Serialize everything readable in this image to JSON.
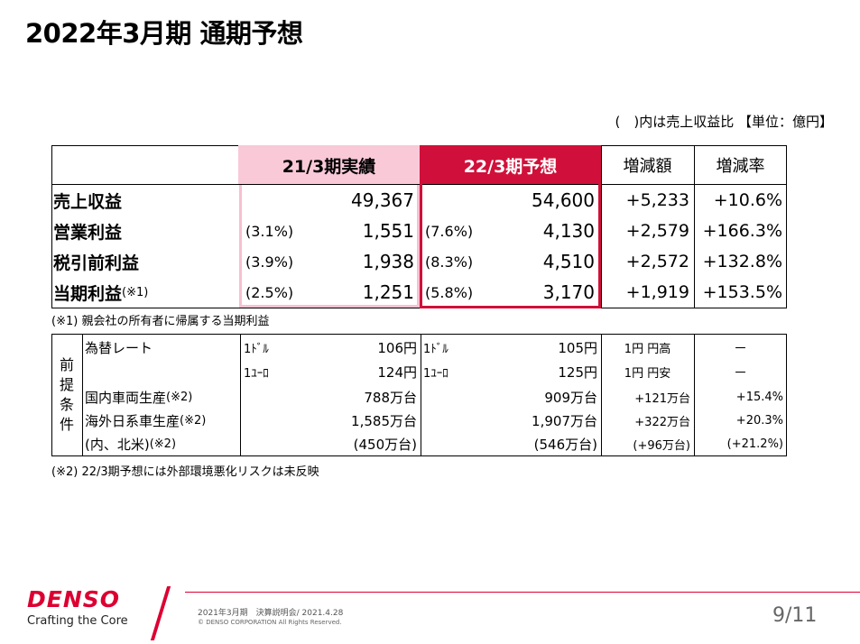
{
  "title": "2022年3月期 通期予想",
  "unit_note": "(　)内は売上収益比 【単位：億円】",
  "main_table": {
    "headers": {
      "actual": "21/3期実績",
      "forecast": "22/3期予想",
      "change": "増減額",
      "rate": "増減率"
    },
    "rows": [
      {
        "label": "売上収益",
        "label_note": "",
        "act_pct": "",
        "act": "49,367",
        "fc_pct": "",
        "fc": "54,600",
        "change": "+5,233",
        "rate": "+10.6%"
      },
      {
        "label": "営業利益",
        "label_note": "",
        "act_pct": "(3.1%)",
        "act": "1,551",
        "fc_pct": "(7.6%)",
        "fc": "4,130",
        "change": "+2,579",
        "rate": "+166.3%"
      },
      {
        "label": "税引前利益",
        "label_note": "",
        "act_pct": "(3.9%)",
        "act": "1,938",
        "fc_pct": "(8.3%)",
        "fc": "4,510",
        "change": "+2,572",
        "rate": "+132.8%"
      },
      {
        "label": "当期利益",
        "label_note": "(※1)",
        "act_pct": "(2.5%)",
        "act": "1,251",
        "fc_pct": "(5.8%)",
        "fc": "3,170",
        "change": "+1,919",
        "rate": "+153.5%"
      }
    ]
  },
  "note1": "(※1) 親会社の所有者に帰属する当期利益",
  "premise": {
    "side_label": [
      "前",
      "提",
      "条",
      "件"
    ],
    "fx_label": "為替レート",
    "fx_rows": [
      {
        "cur_act": "1ﾄﾞﾙ",
        "act": "106円",
        "cur_fc": "1ﾄﾞﾙ",
        "fc": "105円",
        "change": "1円 円高",
        "rate": "－"
      },
      {
        "cur_act": "1ﾕｰﾛ",
        "act": "124円",
        "cur_fc": "1ﾕｰﾛ",
        "fc": "125円",
        "change": "1円 円安",
        "rate": "－"
      }
    ],
    "rows": [
      {
        "label": "国内車両生産",
        "note": "(※2)",
        "act": "788万台",
        "fc": "909万台",
        "change": "+121万台",
        "rate": "+15.4%"
      },
      {
        "label": "海外日系車生産",
        "note": "(※2)",
        "act": "1,585万台",
        "fc": "1,907万台",
        "change": "+322万台",
        "rate": "+20.3%"
      },
      {
        "label": "(内、北米)",
        "note": "(※2)",
        "act": "(450万台)",
        "fc": "(546万台)",
        "change": "(+96万台)",
        "rate": "(+21.2%)"
      }
    ]
  },
  "note2": "(※2) 22/3期予想には外部環境悪化リスクは未反映",
  "footer": {
    "logo": "DENSO",
    "tagline": "Crafting the Core",
    "event": "2021年3月期　決算説明会/ 2021.4.28",
    "copyright": "© DENSO CORPORATION All Rights Reserved.",
    "page": "9/11"
  },
  "colors": {
    "brand_red": "#dc0032",
    "forecast_header": "#d0103a",
    "actual_header": "#f9c9d8",
    "actual_border": "#f7c0d1"
  }
}
